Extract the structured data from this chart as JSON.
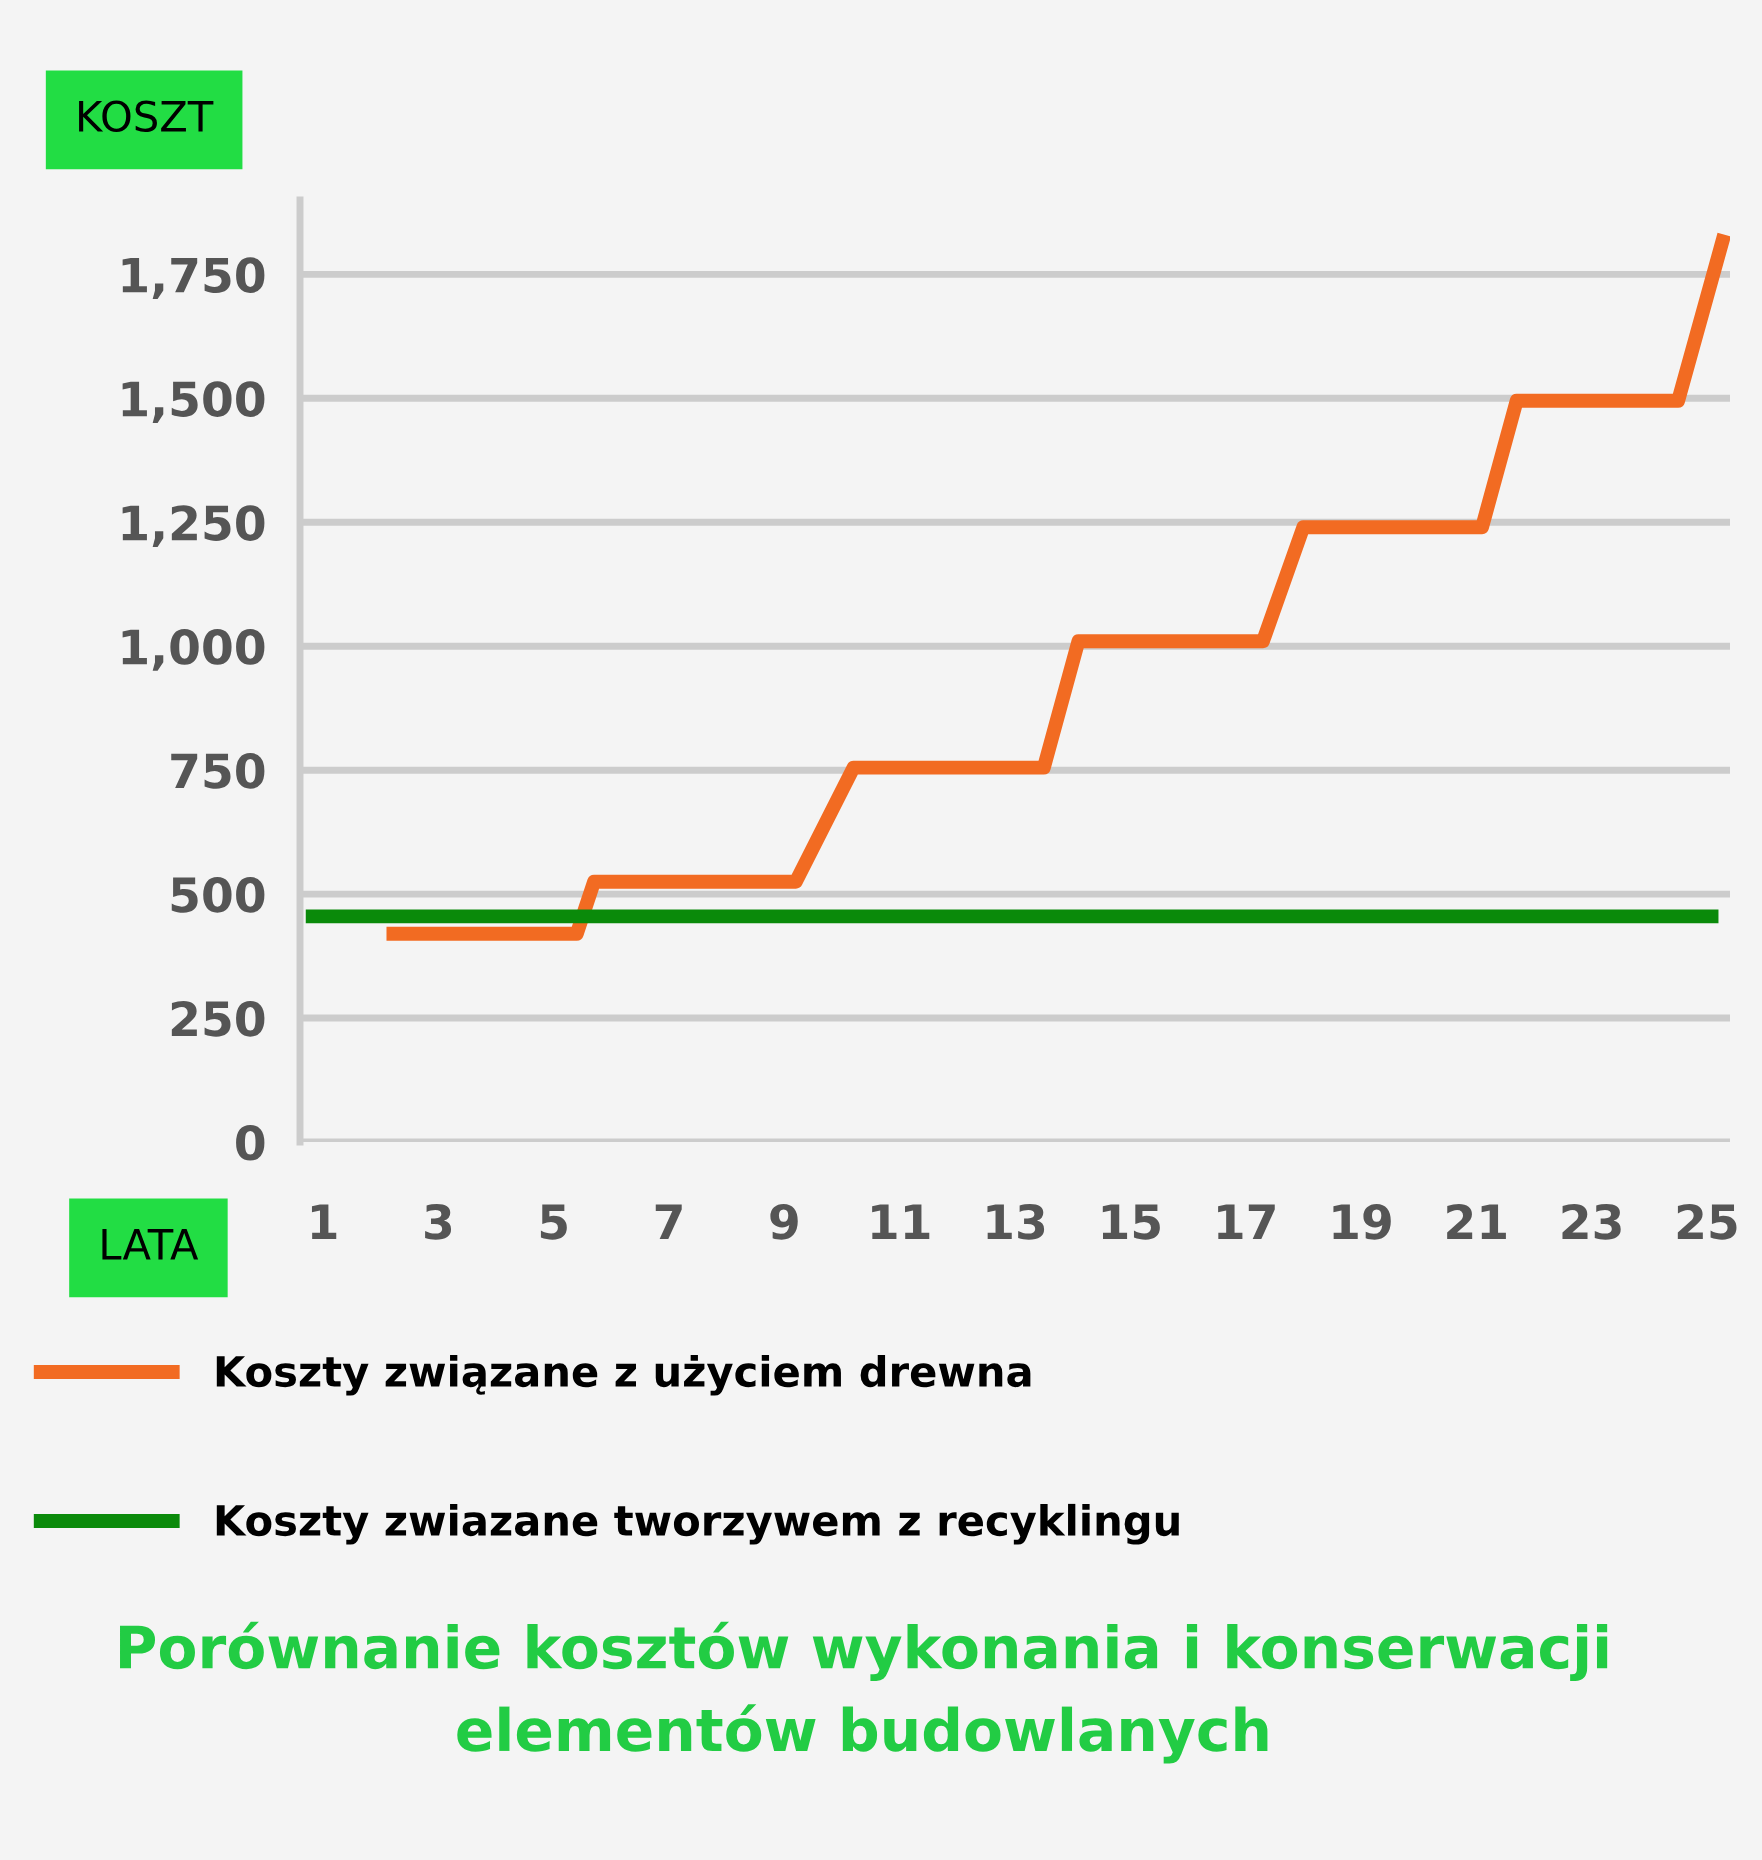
{
  "chart_data": {
    "type": "line",
    "title": "Porównanie kosztów wykonania i konserwacji elementów budowlanych",
    "xlabel": "LATA",
    "ylabel": "KOSZT",
    "series": [
      {
        "name": "Koszty związane z użyciem drewna",
        "color": "#f26b22",
        "x": [
          2.1,
          5.4,
          5.7,
          9.2,
          10.2,
          13.5,
          14.1,
          17.3,
          18.0,
          21.1,
          21.7,
          24.5,
          25.3
        ],
        "values": [
          420,
          420,
          525,
          525,
          755,
          755,
          1010,
          1010,
          1240,
          1240,
          1495,
          1495,
          1830
        ]
      },
      {
        "name": "Koszty zwiazane tworzywem z recyklingu",
        "color": "#0a8a0a",
        "x": [
          0.7,
          25.2
        ],
        "values": [
          455,
          455
        ]
      }
    ],
    "xlim": [
      0.6,
      25.4
    ],
    "xticks": [
      1,
      3,
      5,
      7,
      9,
      11,
      13,
      15,
      17,
      19,
      21,
      23,
      25
    ],
    "ylim": [
      0,
      1900
    ],
    "yticks": [
      {
        "value": 0,
        "label": "0"
      },
      {
        "value": 250,
        "label": "250"
      },
      {
        "value": 500,
        "label": "500"
      },
      {
        "value": 750,
        "label": "750"
      },
      {
        "value": 1000,
        "label": "1,000"
      },
      {
        "value": 1250,
        "label": "1,250"
      },
      {
        "value": 1500,
        "label": "1,500"
      },
      {
        "value": 1750,
        "label": "1,750"
      }
    ],
    "grid": "y",
    "legend": "bottom",
    "marker": "none",
    "line_style": "solid"
  }
}
